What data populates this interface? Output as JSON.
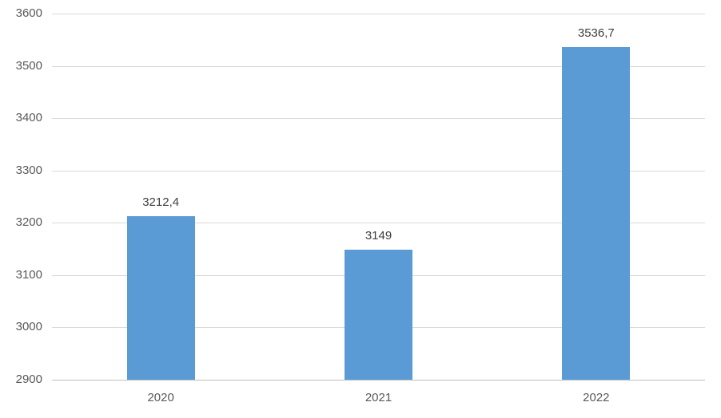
{
  "chart_data": {
    "type": "bar",
    "title": "",
    "xlabel": "",
    "ylabel": "",
    "categories": [
      "2020",
      "2021",
      "2022"
    ],
    "values": [
      3212.4,
      3149,
      3536.7
    ],
    "value_labels": [
      "3212,4",
      "3149",
      "3536,7"
    ],
    "ylim": [
      2900,
      3600
    ],
    "ytick_step": 100,
    "ytick_labels": [
      "2900",
      "3000",
      "3100",
      "3200",
      "3300",
      "3400",
      "3500",
      "3600"
    ],
    "grid": true,
    "legend": false,
    "colors": {
      "bar_fill": "#5B9BD5",
      "gridline": "#D9D9D9",
      "axis_line": "#BFBFBF",
      "tick_label": "#595959",
      "value_label": "#404040",
      "background": "#FFFFFF"
    }
  }
}
